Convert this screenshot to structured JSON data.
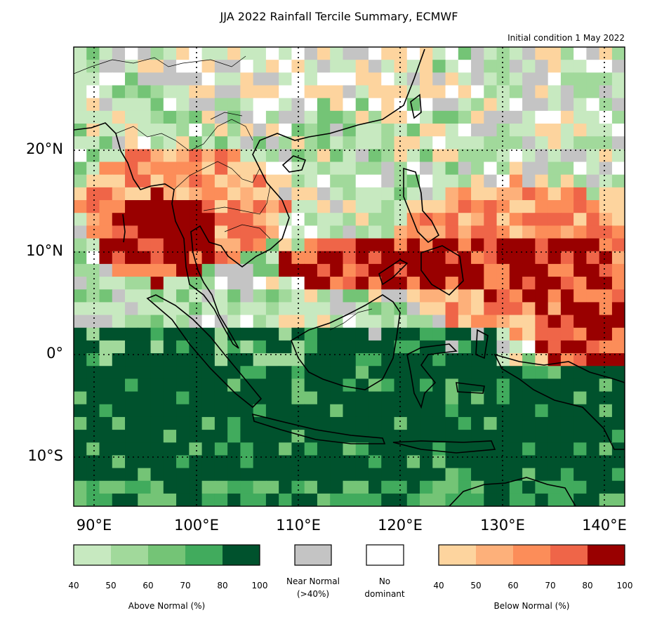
{
  "title": "JJA 2022 Rainfall Tercile Summary, ECMWF",
  "subtitle": "Initial condition 1 May 2022",
  "map": {
    "lat_labels": [
      "20°N",
      "10°N",
      "0°",
      "10°S"
    ],
    "lon_labels": [
      "90°E",
      "100°E",
      "110°E",
      "120°E",
      "130°E",
      "140°E"
    ]
  },
  "legend": {
    "above": {
      "title": "Above Normal (%)",
      "ticks": [
        "40",
        "50",
        "60",
        "70",
        "80",
        "100"
      ],
      "colors": [
        "#c7e9c0",
        "#a1d99b",
        "#74c476",
        "#41ab5d",
        "#00522d"
      ]
    },
    "near": {
      "label_line1": "Near Normal",
      "label_line2": "(>40%)",
      "color": "#c4c4c4"
    },
    "nodom": {
      "label_line1": "No",
      "label_line2": "dominant",
      "color": "#ffffff"
    },
    "below": {
      "title": "Below Normal (%)",
      "ticks": [
        "40",
        "50",
        "60",
        "70",
        "80",
        "100"
      ],
      "colors": [
        "#fdd49e",
        "#fdb07a",
        "#fc8d59",
        "#ef6548",
        "#990000"
      ]
    }
  }
}
